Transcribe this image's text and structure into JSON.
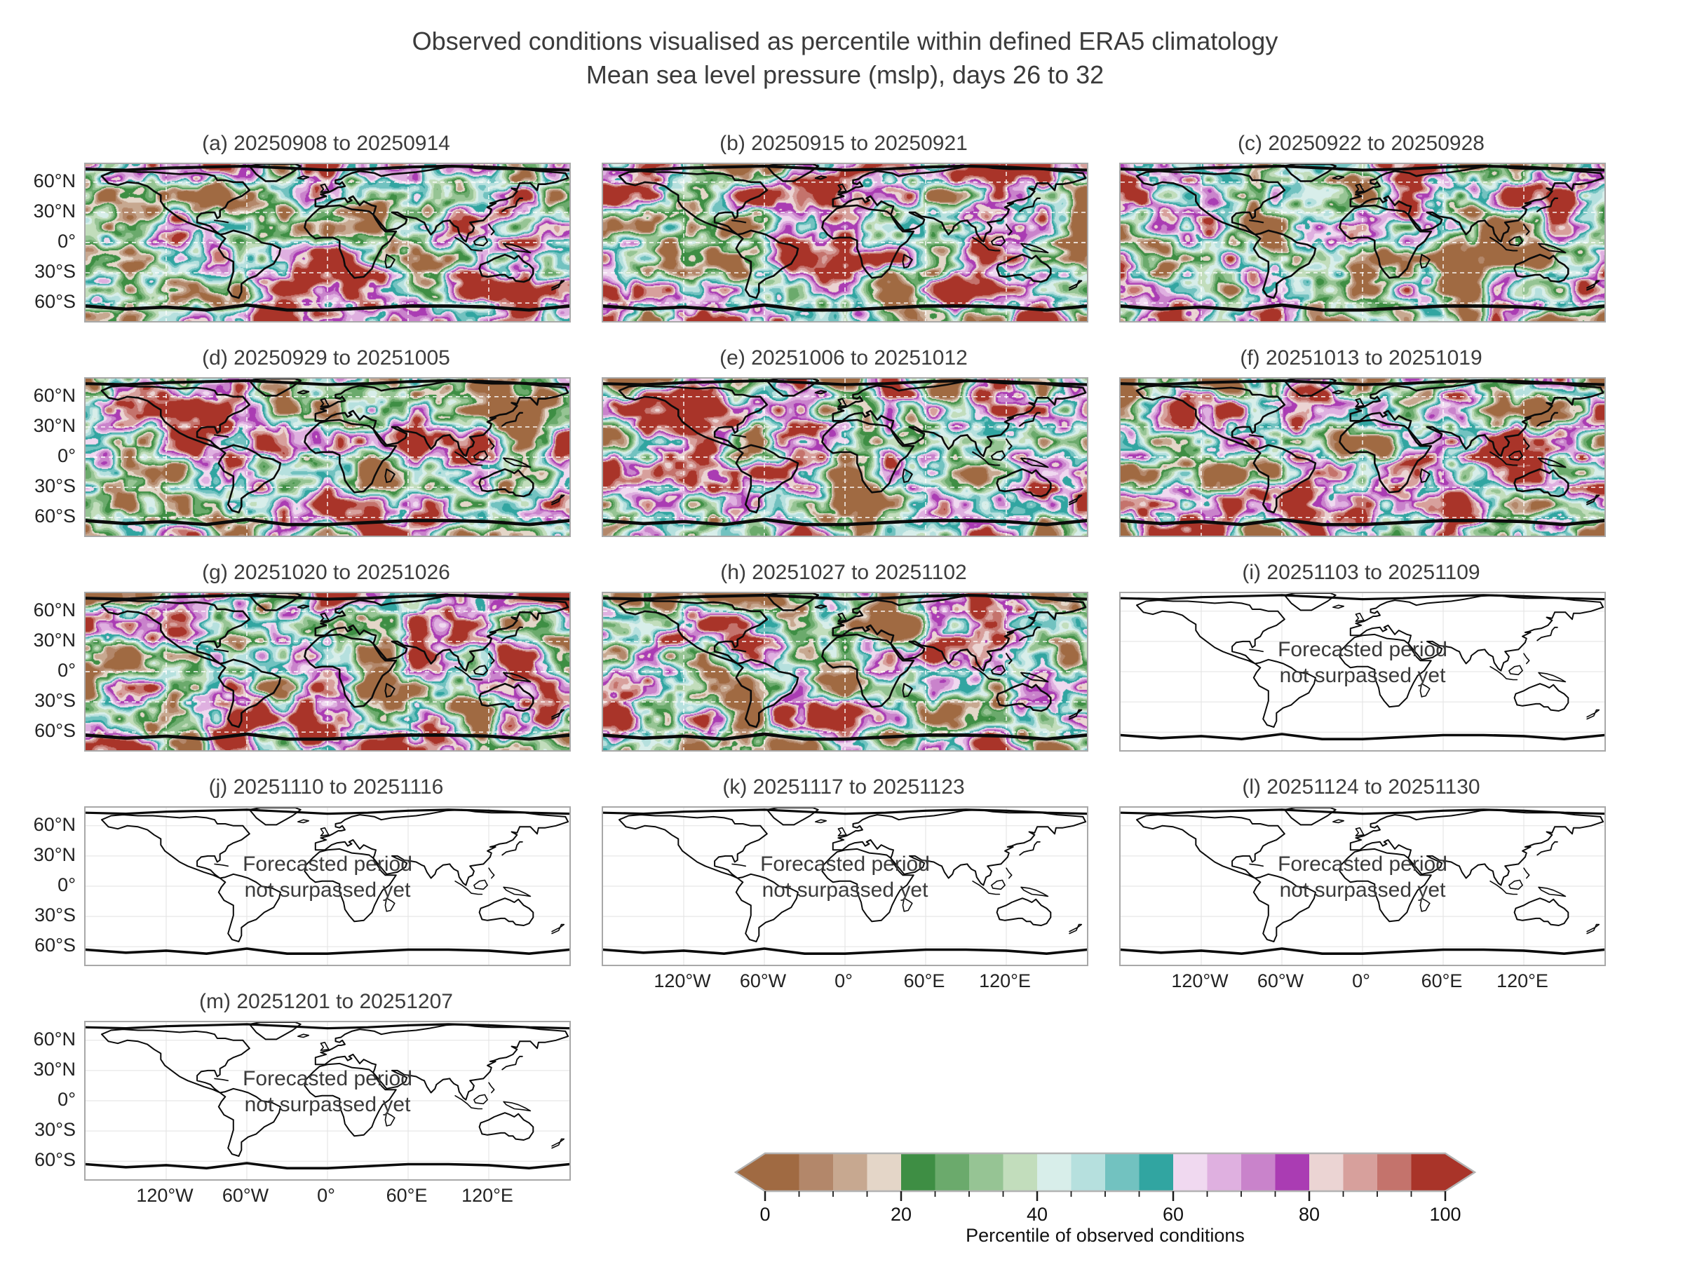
{
  "figure_title": {
    "line1": "Observed conditions visualised as percentile within defined ERA5 climatology",
    "line2": "Mean sea level pressure (mslp), days 26 to 32"
  },
  "forecast_note": {
    "line1": "Forecasted period",
    "line2": "not surpassed yet"
  },
  "axis_ticks": {
    "lat_labels": [
      "60°N",
      "30°N",
      "0°",
      "30°S",
      "60°S"
    ],
    "lat_values": [
      60,
      30,
      0,
      -30,
      -60
    ],
    "lon_labels": [
      "120°W",
      "60°W",
      "0°",
      "60°E",
      "120°E"
    ],
    "lon_values": [
      -120,
      -60,
      0,
      60,
      120
    ]
  },
  "colorbar": {
    "label": "Percentile of observed conditions",
    "major_tick_labels": [
      "0",
      "20",
      "40",
      "60",
      "80",
      "100"
    ],
    "colors": [
      "#A06A42",
      "#B3876A",
      "#C7A890",
      "#E4D6C8",
      "#3E8E44",
      "#6BAA6C",
      "#96C494",
      "#C2DDBC",
      "#D8EEEA",
      "#B6E0DE",
      "#72C2C0",
      "#31A5A1",
      "#F0D9F0",
      "#DFB0E0",
      "#C983CB",
      "#AA3CB3",
      "#EBD4D3",
      "#D7A09C",
      "#C4736C",
      "#A93429"
    ]
  },
  "chart_data": {
    "type": "heatmap",
    "subtype": "global-map-small-multiples",
    "title": "Observed conditions visualised as percentile within defined ERA5 climatology",
    "subtitle": "Mean sea level pressure (mslp), days 26 to 32",
    "variable": "Mean sea level pressure (mslp)",
    "lead_days": "26 to 32",
    "grid": {
      "columns": 3,
      "rows": 5
    },
    "panels": [
      {
        "id": "a",
        "label": "(a) 20250908 to 20250914",
        "start": "20250908",
        "end": "20250914",
        "status": "observed"
      },
      {
        "id": "b",
        "label": "(b) 20250915 to 20250921",
        "start": "20250915",
        "end": "20250921",
        "status": "observed"
      },
      {
        "id": "c",
        "label": "(c) 20250922 to 20250928",
        "start": "20250922",
        "end": "20250928",
        "status": "observed"
      },
      {
        "id": "d",
        "label": "(d) 20250929 to 20251005",
        "start": "20250929",
        "end": "20251005",
        "status": "observed"
      },
      {
        "id": "e",
        "label": "(e) 20251006 to 20251012",
        "start": "20251006",
        "end": "20251012",
        "status": "observed"
      },
      {
        "id": "f",
        "label": "(f) 20251013 to 20251019",
        "start": "20251013",
        "end": "20251019",
        "status": "observed"
      },
      {
        "id": "g",
        "label": "(g) 20251020 to 20251026",
        "start": "20251020",
        "end": "20251026",
        "status": "observed"
      },
      {
        "id": "h",
        "label": "(h) 20251027 to 20251102",
        "start": "20251027",
        "end": "20251102",
        "status": "observed"
      },
      {
        "id": "i",
        "label": "(i) 20251103 to 20251109",
        "start": "20251103",
        "end": "20251109",
        "status": "forecast-pending"
      },
      {
        "id": "j",
        "label": "(j) 20251110 to 20251116",
        "start": "20251110",
        "end": "20251116",
        "status": "forecast-pending"
      },
      {
        "id": "k",
        "label": "(k) 20251117 to 20251123",
        "start": "20251117",
        "end": "20251123",
        "status": "forecast-pending"
      },
      {
        "id": "l",
        "label": "(l) 20251124 to 20251130",
        "start": "20251124",
        "end": "20251130",
        "status": "forecast-pending"
      },
      {
        "id": "m",
        "label": "(m) 20251201 to 20251207",
        "start": "20251201",
        "end": "20251207",
        "status": "forecast-pending"
      }
    ],
    "forecast_note": "Forecasted period not surpassed yet",
    "colorbar": {
      "label": "Percentile of observed conditions",
      "range": [
        0,
        100
      ],
      "major_ticks": [
        0,
        20,
        40,
        60,
        80,
        100
      ],
      "minor_tick_step": 5,
      "segments": 20,
      "extend_arrows": "both"
    },
    "lat_ticks": [
      "60°N",
      "30°N",
      "0°",
      "30°S",
      "60°S"
    ],
    "lon_ticks": [
      "120°W",
      "60°W",
      "0°",
      "60°E",
      "120°E"
    ],
    "legend_position": "bottom-right"
  }
}
